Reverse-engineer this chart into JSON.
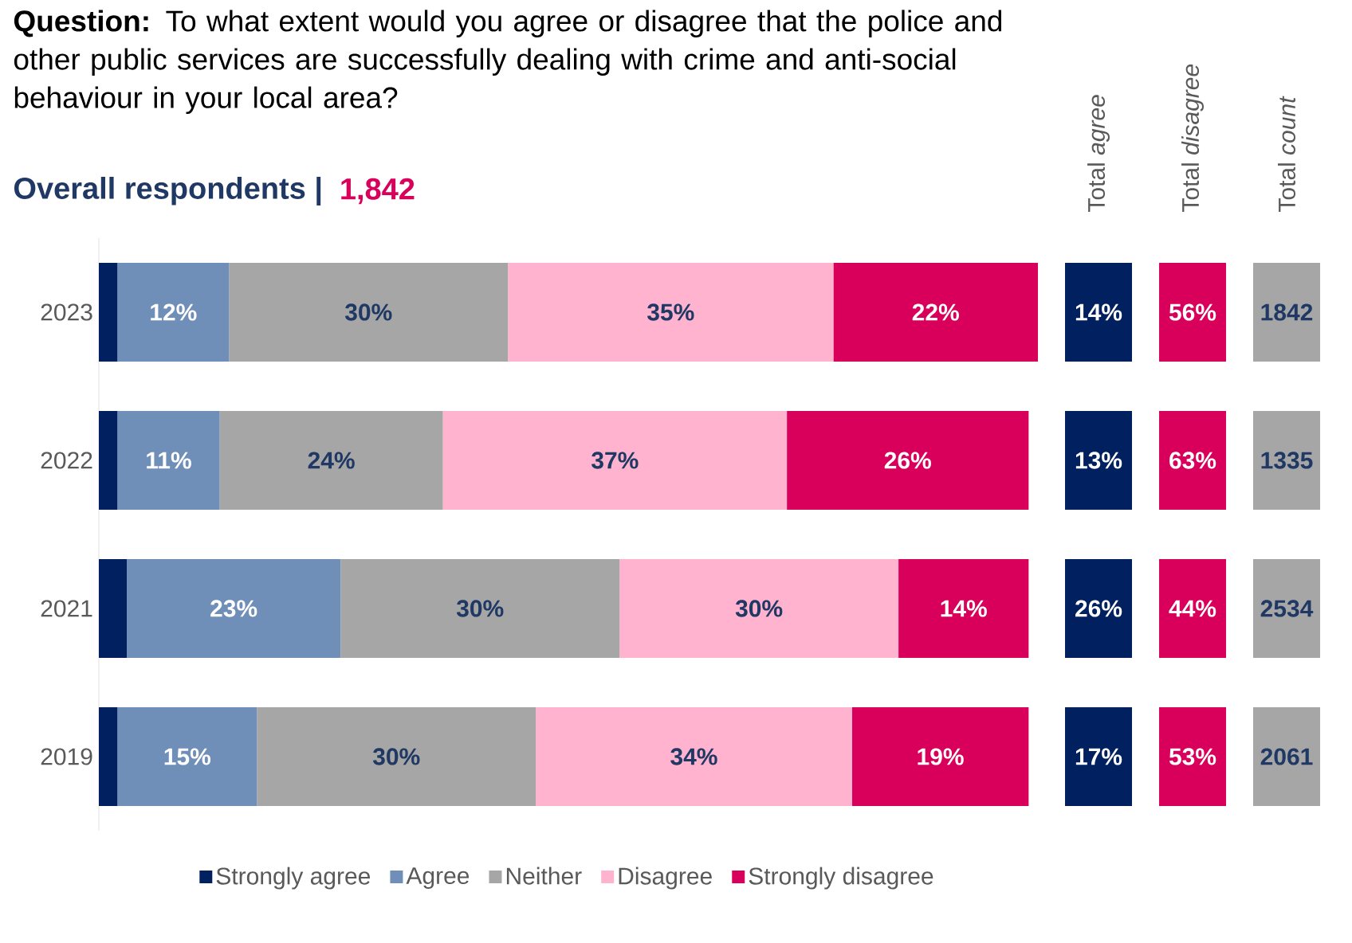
{
  "chart_data": [
    {
      "type": "bar",
      "orientation": "horizontal",
      "stacked": true,
      "title": "**Question:** To what extent would you agree or disagree that the police and other public services are successfully dealing with crime and anti-social behaviour in your local area?",
      "subtitle": "Overall respondents |",
      "annotations": [
        "1,842"
      ],
      "categories": [
        "2023",
        "2022",
        "2021",
        "2019"
      ],
      "series": [
        {
          "name": "Strongly agree",
          "color": "#002060",
          "values": [
            2,
            2,
            3,
            2
          ],
          "value_labels": [
            null,
            null,
            null,
            null
          ]
        },
        {
          "name": "Agree",
          "color": "#6f8fb8",
          "values": [
            12,
            11,
            23,
            15
          ],
          "value_labels": [
            "12%",
            "11%",
            "23%",
            "15%"
          ]
        },
        {
          "name": "Neither",
          "color": "#a6a6a6",
          "values": [
            30,
            24,
            30,
            30
          ],
          "value_labels": [
            "30%",
            "24%",
            "30%",
            "30%"
          ]
        },
        {
          "name": "Disagree",
          "color": "#ffb3cf",
          "values": [
            35,
            37,
            30,
            34
          ],
          "value_labels": [
            "35%",
            "37%",
            "30%",
            "34%"
          ]
        },
        {
          "name": "Strongly disagree",
          "color": "#d9005b",
          "values": [
            22,
            26,
            14,
            19
          ],
          "value_labels": [
            "22%",
            "26%",
            "14%",
            "19%"
          ]
        }
      ],
      "legend": "bottom",
      "tick_labels": "y"
    },
    {
      "type": "other",
      "categories": [
        "Total *agree*",
        "Total *disagree*",
        "Total *count*"
      ],
      "colors": [
        "#002060",
        "#d9005b",
        "#a6a6a6"
      ],
      "cell_labels": [
        [
          "14%",
          "56%",
          "1842"
        ],
        [
          "13%",
          "63%",
          "1335"
        ],
        [
          "26%",
          "44%",
          "2534"
        ],
        [
          "17%",
          "53%",
          "2061"
        ]
      ]
    }
  ]
}
